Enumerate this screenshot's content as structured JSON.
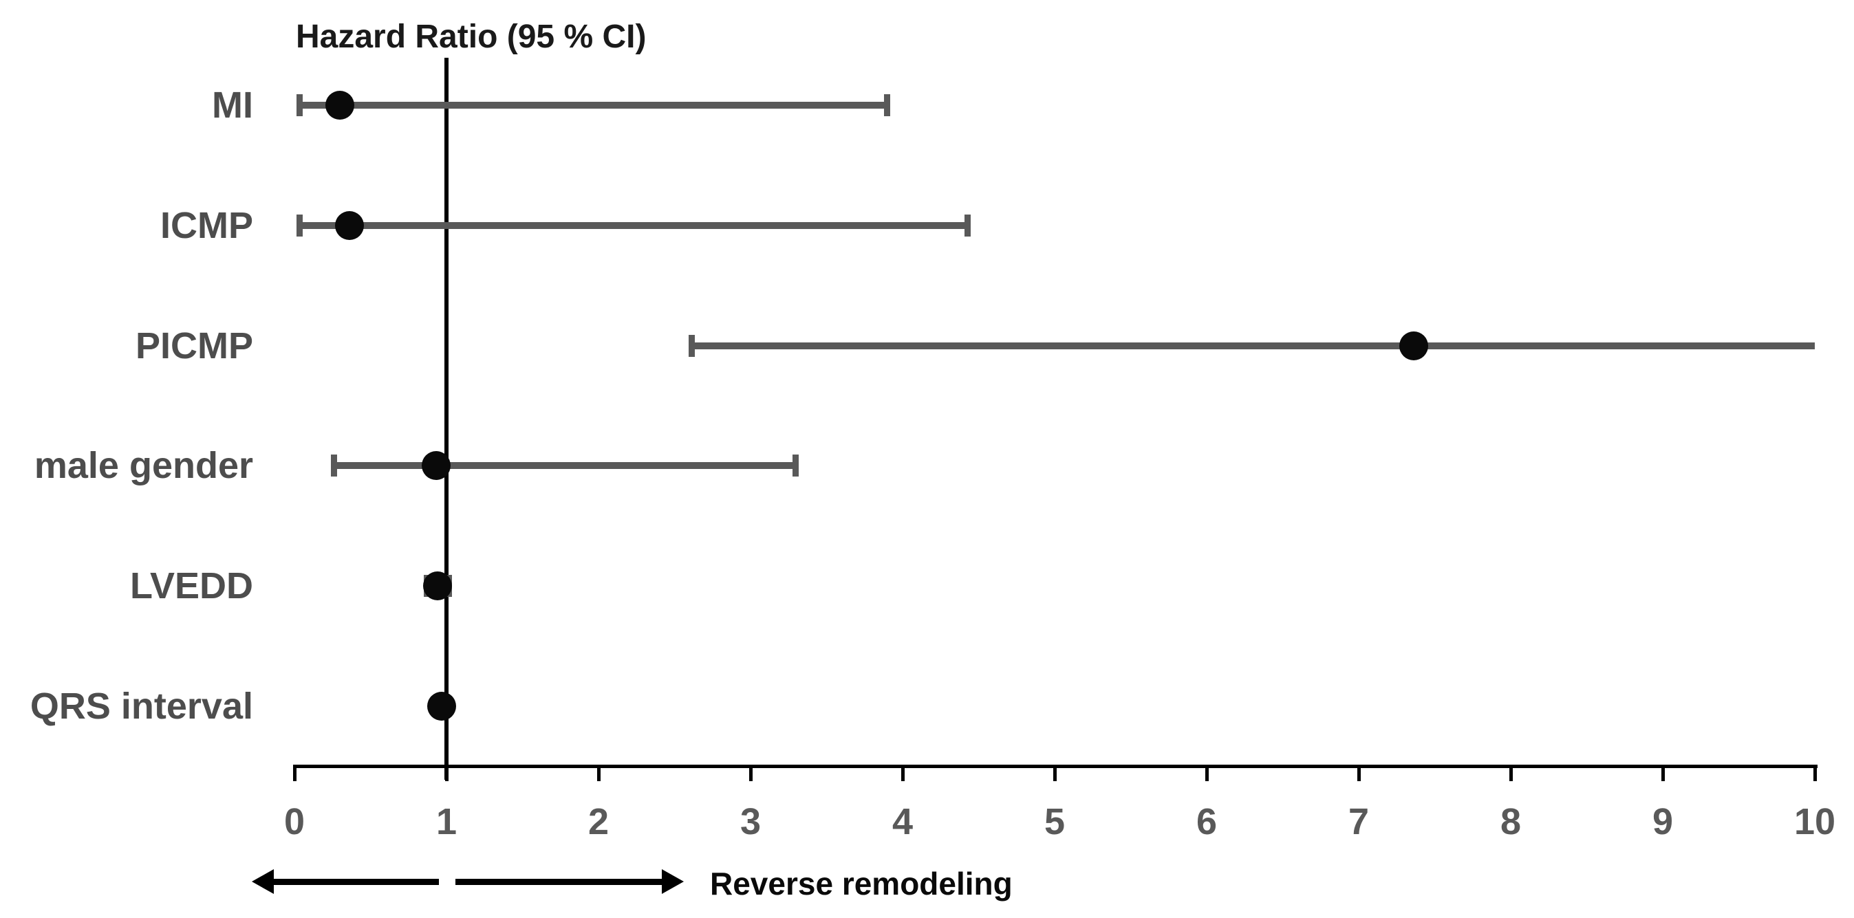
{
  "chart_data": {
    "type": "scatter",
    "variant": "forest-plot",
    "title": "Hazard Ratio (95 % CI)",
    "categories": [
      "MI",
      "ICMP",
      "PICMP",
      "male gender",
      "LVEDD",
      "QRS interval"
    ],
    "points": [
      {
        "label": "MI",
        "hr": 0.3,
        "ci_low": 0.03,
        "ci_high": 3.9,
        "ci_low_capped": true,
        "ci_high_capped": true
      },
      {
        "label": "ICMP",
        "hr": 0.36,
        "ci_low": 0.03,
        "ci_high": 4.43,
        "ci_low_capped": true,
        "ci_high_capped": true
      },
      {
        "label": "PICMP",
        "hr": 7.36,
        "ci_low": 2.61,
        "ci_high": 10.0,
        "ci_low_capped": true,
        "ci_high_capped": false,
        "ci_upper_truncated_at_axis_max": true
      },
      {
        "label": "male gender",
        "hr": 0.93,
        "ci_low": 0.26,
        "ci_high": 3.3,
        "ci_low_capped": true,
        "ci_high_capped": true
      },
      {
        "label": "LVEDD",
        "hr": 0.94,
        "ci_low": 0.87,
        "ci_high": 1.02,
        "ci_low_capped": true,
        "ci_high_capped": true
      },
      {
        "label": "QRS interval",
        "hr": 0.97,
        "ci_low": 0.93,
        "ci_high": 1.0,
        "ci_low_capped": true,
        "ci_high_capped": true
      }
    ],
    "x_axis": {
      "range": [
        0,
        10
      ],
      "ticks": [
        0,
        1,
        2,
        3,
        4,
        5,
        6,
        7,
        8,
        9,
        10
      ]
    },
    "reference_line_x": 1,
    "annotation": {
      "text": "Reverse remodeling",
      "left_arrow_direction": "left",
      "right_arrow_direction": "right"
    },
    "legend_position": "none",
    "grid": false,
    "colors": {
      "ci_line": "#595959",
      "point_dot": "#0a0a0a",
      "axis": "#000000",
      "category_label": "#4d4d4d",
      "tick_label": "#595959",
      "title_text": "#1a1a1a",
      "annotation_text": "#0a0a0a",
      "background": "#ffffff"
    }
  }
}
